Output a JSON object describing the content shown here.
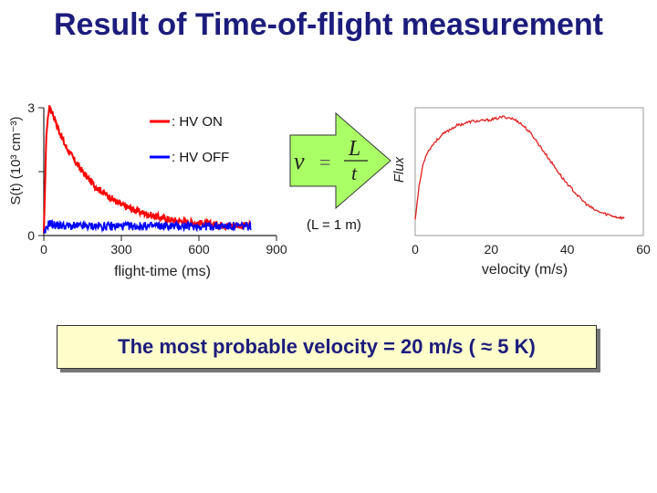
{
  "slide": {
    "title": "Result of Time-of-flight measurement",
    "conclusion": "The most probable velocity = 20 m/s ( ≈ 5 K)"
  },
  "formula": {
    "lhs": "v",
    "equals": "=",
    "numerator": "L",
    "denominator": "t",
    "note": "(L = 1 m)"
  },
  "colors": {
    "title": "#1c1c7c",
    "hv_on": "#ff0000",
    "hv_off": "#0000ff",
    "flux": "#e02020",
    "arrow_fill": "#aaff66",
    "box_fill": "#ffffcc"
  },
  "chart_data": [
    {
      "type": "line",
      "title": "",
      "xlabel": "flight-time (ms)",
      "ylabel": "S(t) (10³ cm⁻³)",
      "xlim": [
        0,
        900
      ],
      "ylim": [
        0,
        3
      ],
      "xticks": [
        0,
        300,
        600,
        900
      ],
      "yticks": [
        0,
        3
      ],
      "legend_position": "top-right",
      "series": [
        {
          "name": ": HV ON",
          "color": "#ff0000",
          "x": [
            0,
            10,
            20,
            30,
            50,
            80,
            120,
            160,
            200,
            250,
            300,
            350,
            400,
            450,
            500,
            550,
            600,
            650,
            700,
            750,
            800
          ],
          "y": [
            0.0,
            2.4,
            3.0,
            2.95,
            2.6,
            2.15,
            1.75,
            1.42,
            1.15,
            0.92,
            0.72,
            0.6,
            0.5,
            0.42,
            0.36,
            0.32,
            0.29,
            0.27,
            0.25,
            0.24,
            0.23
          ]
        },
        {
          "name": ": HV OFF",
          "color": "#0000ff",
          "x": [
            0,
            10,
            20,
            40,
            100,
            200,
            300,
            400,
            500,
            600,
            700,
            800
          ],
          "y": [
            0.0,
            0.15,
            0.3,
            0.25,
            0.22,
            0.22,
            0.22,
            0.22,
            0.22,
            0.22,
            0.22,
            0.22
          ]
        }
      ]
    },
    {
      "type": "line",
      "title": "",
      "xlabel": "velocity (m/s)",
      "ylabel": "Flux",
      "xlim": [
        0,
        60
      ],
      "xticks": [
        0,
        20,
        40,
        60
      ],
      "series": [
        {
          "color": "#e02020",
          "x": [
            0,
            1,
            2,
            3,
            5,
            7,
            9,
            11,
            13,
            15,
            17,
            19,
            21,
            23,
            25,
            27,
            29,
            31,
            33,
            35,
            37,
            39,
            41,
            43,
            45,
            47,
            49,
            51,
            53,
            55
          ],
          "y": [
            0.05,
            0.35,
            0.55,
            0.66,
            0.76,
            0.83,
            0.88,
            0.92,
            0.94,
            0.96,
            0.96,
            0.97,
            0.98,
            1.0,
            0.99,
            0.96,
            0.9,
            0.82,
            0.72,
            0.62,
            0.52,
            0.42,
            0.34,
            0.26,
            0.19,
            0.14,
            0.11,
            0.09,
            0.07,
            0.06
          ]
        }
      ]
    }
  ]
}
